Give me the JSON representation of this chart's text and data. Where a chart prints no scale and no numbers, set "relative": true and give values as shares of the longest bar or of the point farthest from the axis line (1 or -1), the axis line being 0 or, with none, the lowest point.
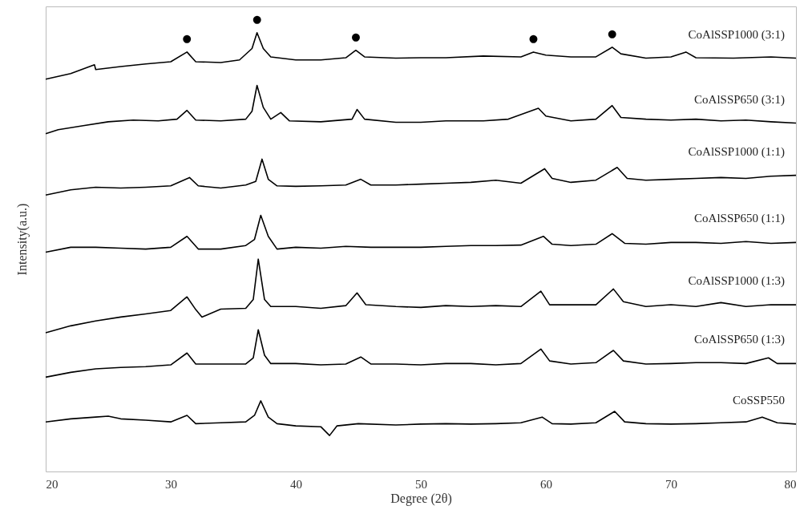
{
  "chart_data": {
    "type": "line",
    "xlabel": "Degree (2θ)",
    "ylabel": "Intensity(a.u.)",
    "relative": true,
    "xlim": [
      20,
      80
    ],
    "xticks": [
      20,
      30,
      40,
      50,
      60,
      70,
      80
    ],
    "annotations": [
      {
        "text": "●",
        "x": 31.3,
        "y": 0.956
      },
      {
        "text": "●",
        "x": 36.9,
        "y": 1.0
      },
      {
        "text": "●",
        "x": 44.8,
        "y": 0.96
      },
      {
        "text": "●",
        "x": 59,
        "y": 0.956
      },
      {
        "text": "●",
        "x": 65.3,
        "y": 0.967
      }
    ],
    "series": [
      {
        "name": "CoAlSSP1000 (3:1)",
        "color": "#000000",
        "x": [
          20,
          22,
          23.9,
          24,
          26,
          28,
          30,
          31.3,
          32,
          34,
          35.5,
          36.5,
          36.9,
          37.4,
          38,
          40,
          42,
          44,
          44.8,
          45.5,
          48,
          50,
          52,
          55,
          58,
          59,
          60,
          62,
          64,
          65.3,
          66,
          68,
          70,
          71.2,
          72,
          75,
          78,
          80
        ],
        "values": [
          0.894,
          0.907,
          0.927,
          0.916,
          0.923,
          0.929,
          0.934,
          0.956,
          0.934,
          0.932,
          0.938,
          0.964,
          1.0,
          0.964,
          0.945,
          0.938,
          0.938,
          0.943,
          0.96,
          0.945,
          0.942,
          0.943,
          0.943,
          0.947,
          0.945,
          0.956,
          0.949,
          0.945,
          0.945,
          0.967,
          0.952,
          0.942,
          0.945,
          0.956,
          0.943,
          0.942,
          0.945,
          0.942
        ]
      },
      {
        "name": "CoAlSSP650 (3:1)",
        "color": "#000000",
        "x": [
          20,
          21,
          23,
          25,
          27,
          29,
          30.5,
          31.3,
          32,
          34,
          36,
          36.5,
          36.9,
          37.4,
          38,
          38.8,
          39.5,
          42,
          44.5,
          44.9,
          45.5,
          48,
          50,
          52,
          55,
          57,
          59.4,
          60,
          62,
          64,
          65.3,
          66,
          68,
          70,
          72,
          74,
          76,
          78,
          80
        ],
        "values": [
          0.77,
          0.779,
          0.788,
          0.797,
          0.801,
          0.799,
          0.803,
          0.823,
          0.801,
          0.799,
          0.803,
          0.821,
          0.88,
          0.83,
          0.803,
          0.818,
          0.799,
          0.797,
          0.803,
          0.825,
          0.803,
          0.796,
          0.796,
          0.799,
          0.799,
          0.803,
          0.828,
          0.81,
          0.799,
          0.803,
          0.834,
          0.807,
          0.803,
          0.801,
          0.803,
          0.799,
          0.801,
          0.797,
          0.794
        ]
      },
      {
        "name": "CoAlSSP1000 (1:1)",
        "color": "#000000",
        "x": [
          20,
          22,
          24,
          26,
          28,
          30,
          31.5,
          32.2,
          34,
          36,
          36.8,
          37.3,
          37.8,
          38.5,
          40,
          42,
          44,
          45.2,
          46,
          48,
          50,
          52,
          54,
          56,
          58,
          59.9,
          60.5,
          62,
          64,
          65.7,
          66.5,
          68,
          70,
          72,
          74,
          76,
          78,
          80
        ],
        "values": [
          0.63,
          0.642,
          0.648,
          0.646,
          0.648,
          0.651,
          0.67,
          0.651,
          0.646,
          0.653,
          0.661,
          0.712,
          0.666,
          0.651,
          0.65,
          0.651,
          0.653,
          0.666,
          0.653,
          0.653,
          0.655,
          0.657,
          0.659,
          0.664,
          0.657,
          0.69,
          0.668,
          0.659,
          0.664,
          0.693,
          0.668,
          0.664,
          0.666,
          0.668,
          0.67,
          0.668,
          0.673,
          0.675
        ]
      },
      {
        "name": "CoAlSSP650 (1:1)",
        "color": "#000000",
        "x": [
          20,
          22,
          24,
          26,
          28,
          30,
          31.3,
          32.2,
          34,
          36,
          36.7,
          37.2,
          37.8,
          38.5,
          40,
          42,
          44,
          46,
          48,
          50,
          52,
          54,
          56,
          58,
          59.8,
          60.5,
          62,
          64,
          65.3,
          66.3,
          68,
          70,
          72,
          74,
          76,
          78,
          80
        ],
        "values": [
          0.5,
          0.511,
          0.511,
          0.509,
          0.507,
          0.511,
          0.536,
          0.507,
          0.507,
          0.515,
          0.529,
          0.584,
          0.536,
          0.507,
          0.511,
          0.509,
          0.513,
          0.511,
          0.511,
          0.511,
          0.513,
          0.515,
          0.515,
          0.516,
          0.536,
          0.518,
          0.515,
          0.518,
          0.542,
          0.52,
          0.518,
          0.522,
          0.522,
          0.52,
          0.524,
          0.52,
          0.522
        ]
      },
      {
        "name": "CoAlSSP1000 (1:3)",
        "color": "#000000",
        "x": [
          20,
          22,
          24,
          26,
          28,
          30,
          31.3,
          32,
          32.5,
          34,
          36,
          36.6,
          37,
          37.5,
          38,
          40,
          42,
          44,
          44.9,
          45.6,
          48,
          50,
          52,
          54,
          56,
          58,
          59.6,
          60.3,
          62,
          64,
          65.4,
          66.2,
          68,
          70,
          72,
          74,
          76,
          78,
          80
        ],
        "values": [
          0.316,
          0.332,
          0.343,
          0.352,
          0.359,
          0.367,
          0.398,
          0.369,
          0.352,
          0.37,
          0.372,
          0.392,
          0.484,
          0.392,
          0.376,
          0.376,
          0.372,
          0.378,
          0.407,
          0.38,
          0.376,
          0.374,
          0.378,
          0.376,
          0.378,
          0.376,
          0.411,
          0.38,
          0.38,
          0.38,
          0.416,
          0.387,
          0.376,
          0.38,
          0.376,
          0.385,
          0.376,
          0.38,
          0.38
        ]
      },
      {
        "name": "CoAlSSP650 (1:3)",
        "color": "#000000",
        "x": [
          20,
          22,
          24,
          26,
          28,
          30,
          31.3,
          32,
          34,
          36,
          36.6,
          37,
          37.5,
          38,
          40,
          42,
          44,
          45.2,
          46,
          48,
          50,
          52,
          54,
          56,
          58,
          59.6,
          60.3,
          62,
          64,
          65.4,
          66.2,
          68,
          70,
          72,
          74,
          76,
          77.8,
          78.5,
          80
        ],
        "values": [
          0.215,
          0.226,
          0.234,
          0.237,
          0.239,
          0.243,
          0.27,
          0.245,
          0.245,
          0.245,
          0.259,
          0.323,
          0.265,
          0.246,
          0.246,
          0.243,
          0.245,
          0.261,
          0.245,
          0.245,
          0.243,
          0.246,
          0.246,
          0.243,
          0.246,
          0.279,
          0.252,
          0.245,
          0.248,
          0.276,
          0.252,
          0.245,
          0.246,
          0.248,
          0.248,
          0.246,
          0.259,
          0.246,
          0.246
        ]
      },
      {
        "name": "CoSSP550",
        "color": "#000000",
        "x": [
          20,
          22,
          24,
          25,
          26,
          28,
          30,
          31.3,
          32,
          34,
          36,
          36.7,
          37.2,
          37.8,
          38.5,
          40,
          42,
          42.7,
          43.3,
          45,
          48,
          50,
          52,
          54,
          56,
          58,
          59.7,
          60.5,
          62,
          64,
          65.5,
          66.3,
          68,
          70,
          72,
          74,
          76,
          77.3,
          78.5,
          80
        ],
        "values": [
          0.113,
          0.12,
          0.124,
          0.126,
          0.12,
          0.117,
          0.113,
          0.128,
          0.109,
          0.111,
          0.113,
          0.128,
          0.161,
          0.124,
          0.109,
          0.104,
          0.102,
          0.082,
          0.104,
          0.109,
          0.106,
          0.108,
          0.109,
          0.108,
          0.109,
          0.111,
          0.124,
          0.109,
          0.108,
          0.111,
          0.137,
          0.113,
          0.109,
          0.108,
          0.109,
          0.111,
          0.113,
          0.124,
          0.111,
          0.108
        ]
      }
    ]
  }
}
